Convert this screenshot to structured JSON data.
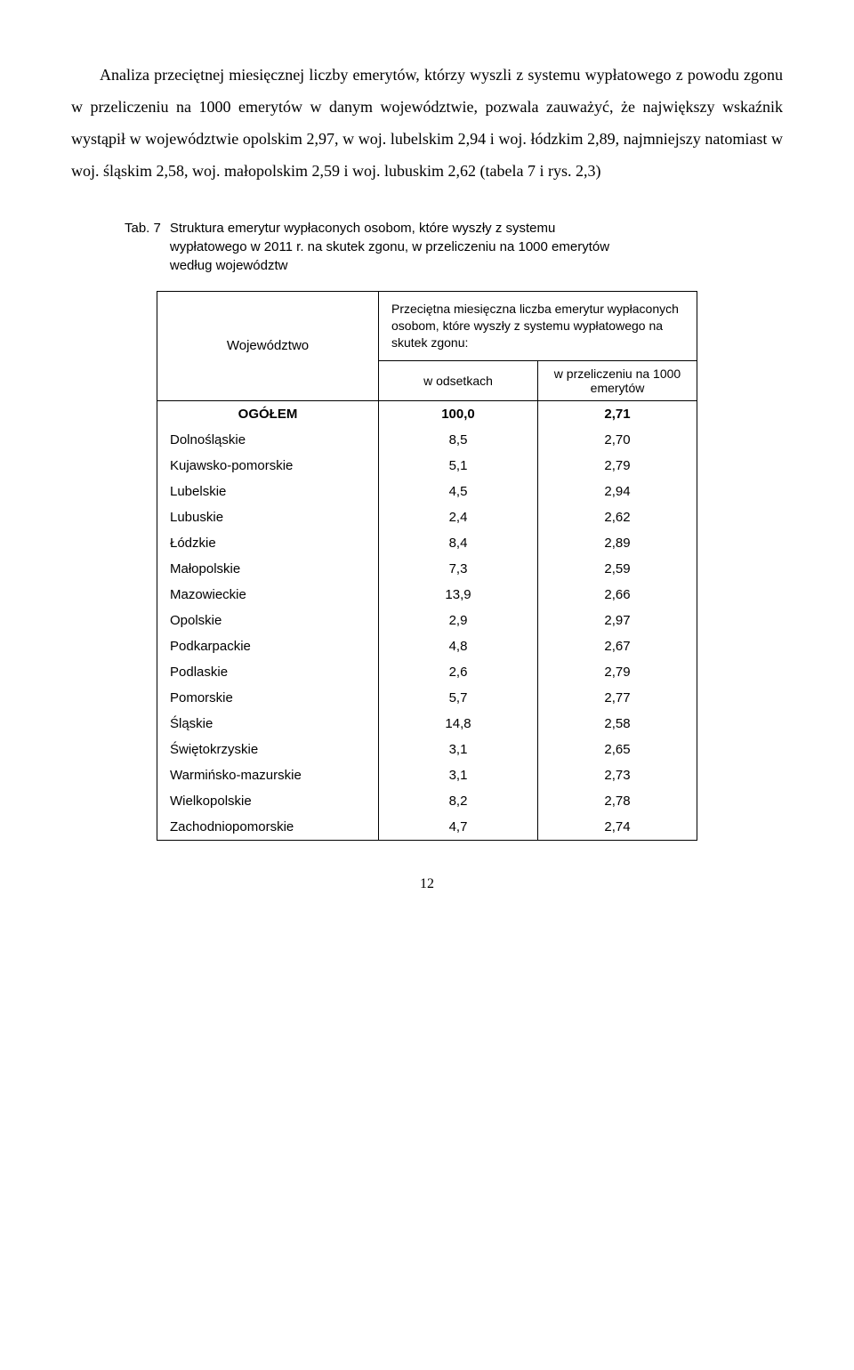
{
  "intro": "Analiza przeciętnej miesięcznej liczby emerytów, którzy wyszli z systemu wypłatowego z powodu zgonu w przeliczeniu na 1000 emerytów w danym województwie, pozwala zauważyć, że największy wskaźnik wystąpił w województwie opolskim 2,97, w woj. lubelskim 2,94 i woj. łódzkim 2,89, najmniejszy natomiast w woj. śląskim 2,58, woj. małopolskim 2,59 i woj. lubuskim 2,62 (tabela 7 i rys. 2,3)",
  "caption": {
    "label": "Tab. 7",
    "text": "Struktura emerytur wypłaconych osobom, które wyszły z systemu wypłatowego w 2011 r. na skutek zgonu, w przeliczeniu na 1000 emerytów według województw"
  },
  "table": {
    "col1_header": "Województwo",
    "col23_header_top": "Przeciętna miesięczna liczba emerytur wypłaconych osobom, które wyszły z systemu wypłatowego na skutek zgonu:",
    "col2_header": "w odsetkach",
    "col3_header": "w przeliczeniu na 1000 emerytów",
    "total": {
      "label": "OGÓŁEM",
      "pct": "100,0",
      "per1000": "2,71"
    },
    "rows": [
      {
        "name": "Dolnośląskie",
        "pct": "8,5",
        "per1000": "2,70"
      },
      {
        "name": "Kujawsko-pomorskie",
        "pct": "5,1",
        "per1000": "2,79"
      },
      {
        "name": "Lubelskie",
        "pct": "4,5",
        "per1000": "2,94"
      },
      {
        "name": "Lubuskie",
        "pct": "2,4",
        "per1000": "2,62"
      },
      {
        "name": "Łódzkie",
        "pct": "8,4",
        "per1000": "2,89"
      },
      {
        "name": "Małopolskie",
        "pct": "7,3",
        "per1000": "2,59"
      },
      {
        "name": "Mazowieckie",
        "pct": "13,9",
        "per1000": "2,66"
      },
      {
        "name": "Opolskie",
        "pct": "2,9",
        "per1000": "2,97"
      },
      {
        "name": "Podkarpackie",
        "pct": "4,8",
        "per1000": "2,67"
      },
      {
        "name": "Podlaskie",
        "pct": "2,6",
        "per1000": "2,79"
      },
      {
        "name": "Pomorskie",
        "pct": "5,7",
        "per1000": "2,77"
      },
      {
        "name": "Śląskie",
        "pct": "14,8",
        "per1000": "2,58"
      },
      {
        "name": "Świętokrzyskie",
        "pct": "3,1",
        "per1000": "2,65"
      },
      {
        "name": "Warmińsko-mazurskie",
        "pct": "3,1",
        "per1000": "2,73"
      },
      {
        "name": "Wielkopolskie",
        "pct": "8,2",
        "per1000": "2,78"
      },
      {
        "name": "Zachodniopomorskie",
        "pct": "4,7",
        "per1000": "2,74"
      }
    ]
  },
  "page_number": "12"
}
